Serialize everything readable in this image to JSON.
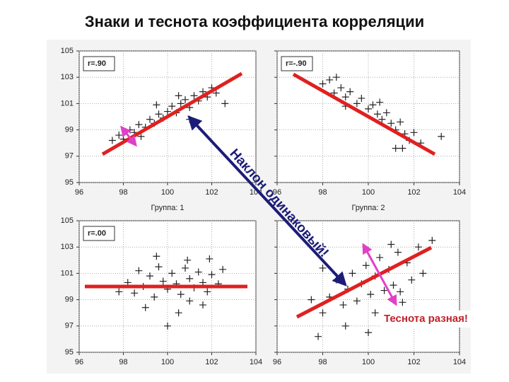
{
  "title": "Знаки и теснота коэффициента корреляции",
  "annotations": {
    "slope": "Наклон одинаковый!",
    "tightness": "Теснота разная!"
  },
  "chart_data": [
    {
      "type": "scatter",
      "label": "r=.90",
      "xlabel": "Группа: 1",
      "color": "#222222",
      "grid": true,
      "ytick_labels": true,
      "xlim": [
        96,
        104
      ],
      "ylim": [
        95,
        105
      ],
      "xticks": [
        96,
        98,
        100,
        102,
        104
      ],
      "yticks": [
        95,
        97,
        99,
        101,
        103,
        105
      ],
      "x": [
        97.5,
        97.8,
        98.0,
        98.3,
        98.5,
        98.7,
        99.0,
        99.2,
        99.4,
        99.6,
        99.8,
        100.0,
        100.2,
        100.4,
        100.6,
        100.8,
        101.0,
        101.2,
        101.4,
        101.6,
        101.8,
        102.0,
        102.2,
        101.0,
        100.5,
        99.5,
        98.8,
        102.6
      ],
      "y": [
        98.2,
        98.6,
        98.3,
        99.0,
        98.8,
        99.4,
        99.2,
        99.8,
        99.5,
        100.2,
        99.9,
        100.4,
        100.8,
        100.3,
        101.0,
        101.3,
        100.7,
        101.6,
        101.2,
        101.9,
        101.5,
        102.2,
        101.8,
        99.8,
        101.6,
        100.9,
        98.5,
        101.0
      ]
    },
    {
      "type": "scatter",
      "label": "r=-.90",
      "xlabel": "Группа: 2",
      "color": "#222222",
      "grid": true,
      "ytick_labels": false,
      "xlim": [
        96,
        104
      ],
      "ylim": [
        95,
        105
      ],
      "xticks": [
        96,
        98,
        100,
        102,
        104
      ],
      "yticks": [
        95,
        97,
        99,
        101,
        103,
        105
      ],
      "x": [
        98.0,
        98.3,
        98.5,
        98.8,
        99.0,
        99.2,
        99.5,
        99.7,
        100.0,
        100.2,
        100.4,
        100.6,
        100.8,
        101.0,
        101.2,
        101.4,
        101.6,
        101.8,
        102.0,
        101.5,
        101.2,
        99.0,
        100.5,
        103.2,
        102.3,
        98.6
      ],
      "y": [
        102.5,
        102.8,
        101.8,
        102.2,
        101.5,
        101.9,
        101.0,
        101.4,
        100.6,
        100.9,
        100.2,
        99.8,
        100.3,
        99.5,
        99.0,
        99.6,
        98.7,
        98.2,
        98.8,
        97.6,
        97.6,
        100.8,
        101.1,
        98.5,
        98.0,
        103.0
      ]
    },
    {
      "type": "scatter",
      "label": "r=.00",
      "color": "#222222",
      "grid": true,
      "ytick_labels": true,
      "xlim": [
        96,
        104
      ],
      "ylim": [
        95,
        105
      ],
      "xticks": [
        96,
        98,
        100,
        102,
        104
      ],
      "yticks": [
        95,
        97,
        99,
        101,
        103,
        105
      ],
      "x": [
        98.2,
        98.5,
        98.7,
        98.9,
        99.2,
        99.4,
        99.6,
        99.8,
        100.0,
        100.2,
        100.4,
        100.6,
        100.8,
        101.0,
        101.2,
        101.4,
        101.6,
        101.8,
        102.0,
        102.3,
        99.0,
        100.5,
        101.6,
        99.5,
        100.9,
        101.9,
        102.5,
        97.8,
        100.0,
        101.0
      ],
      "y": [
        100.3,
        99.5,
        101.2,
        100.0,
        100.8,
        99.2,
        101.5,
        100.4,
        99.8,
        101.0,
        100.2,
        99.4,
        101.4,
        100.6,
        99.9,
        101.1,
        100.3,
        99.6,
        100.9,
        100.2,
        98.4,
        98.0,
        98.6,
        102.3,
        102.0,
        102.1,
        101.3,
        99.6,
        97.0,
        98.9
      ]
    },
    {
      "type": "scatter",
      "color": "#222222",
      "grid": true,
      "ytick_labels": false,
      "xlim": [
        96,
        104
      ],
      "ylim": [
        95,
        105
      ],
      "xticks": [
        96,
        98,
        100,
        102,
        104
      ],
      "yticks": [
        95,
        97,
        99,
        101,
        103,
        105
      ],
      "x": [
        98.0,
        98.3,
        98.6,
        98.9,
        99.1,
        99.3,
        99.5,
        99.7,
        99.9,
        100.1,
        100.3,
        100.5,
        100.7,
        100.9,
        101.1,
        101.3,
        101.5,
        101.7,
        101.9,
        102.2,
        102.4,
        97.8,
        99.0,
        100.0,
        100.3,
        101.0,
        102.8,
        97.5,
        98.0,
        101.4
      ],
      "y": [
        98.0,
        99.2,
        100.5,
        98.6,
        99.8,
        101.0,
        98.9,
        100.2,
        101.6,
        99.4,
        100.8,
        102.2,
        99.7,
        101.3,
        100.1,
        102.6,
        98.8,
        101.8,
        100.5,
        103.0,
        101.0,
        96.2,
        97.0,
        96.5,
        98.0,
        103.2,
        103.5,
        99.0,
        101.4,
        99.6
      ]
    }
  ]
}
